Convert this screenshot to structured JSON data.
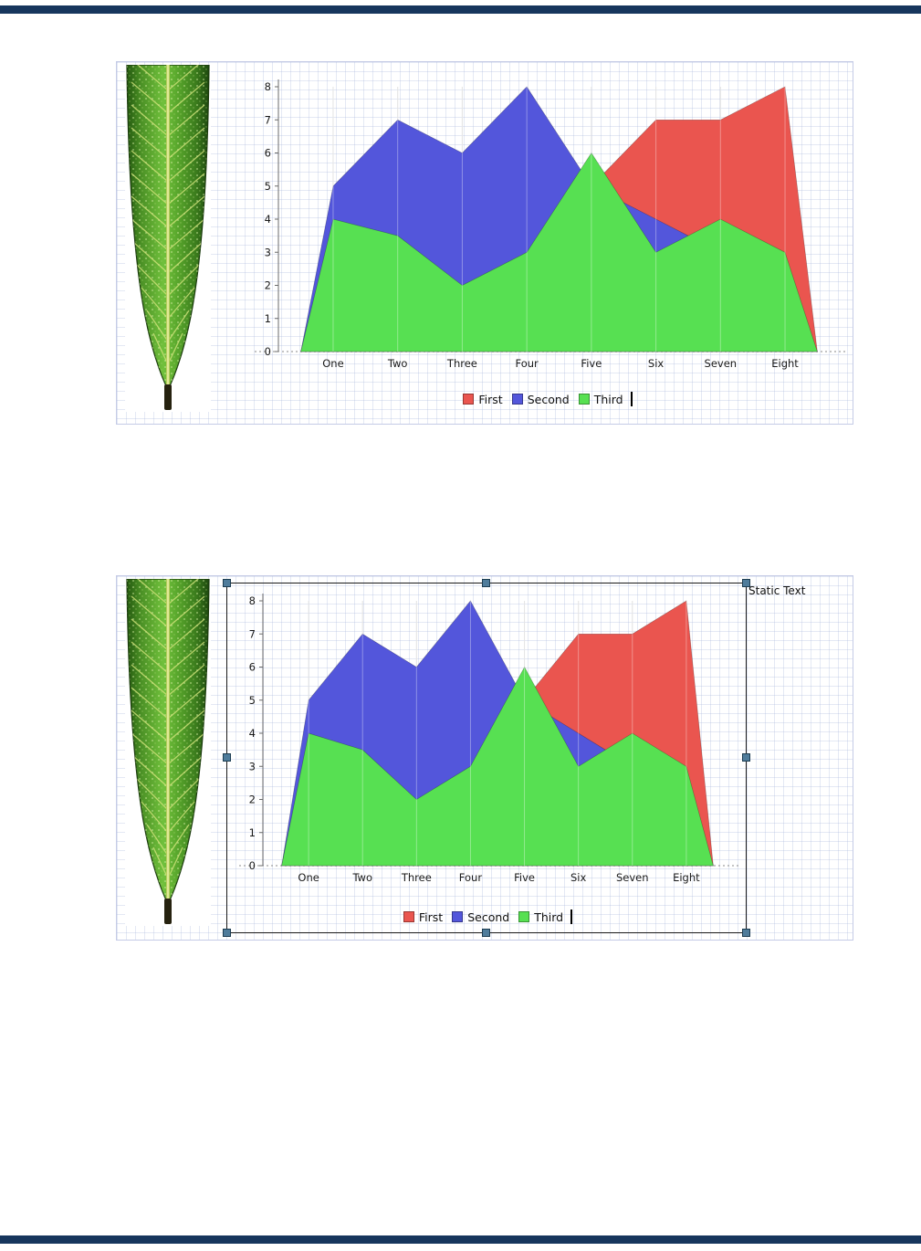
{
  "document": {
    "header_rule_color": "#17365D",
    "footer_rule_color": "#17365D"
  },
  "designer": {
    "static_text_label": "Static Text"
  },
  "chart_data": [
    {
      "type": "area",
      "title": "",
      "categories": [
        "One",
        "Two",
        "Three",
        "Four",
        "Five",
        "Six",
        "Seven",
        "Eight"
      ],
      "series": [
        {
          "name": "First",
          "color": "#EA554F",
          "values": [
            3,
            3,
            2,
            3,
            5,
            7,
            7,
            8
          ]
        },
        {
          "name": "Second",
          "color": "#5356DB",
          "values": [
            5,
            7,
            6,
            8,
            5,
            4,
            3,
            2
          ]
        },
        {
          "name": "Third",
          "color": "#57E052",
          "values": [
            4,
            3.5,
            2,
            3,
            6,
            3,
            4,
            3
          ]
        }
      ],
      "ylim": [
        0,
        8
      ],
      "yticks": [
        0,
        1,
        2,
        3,
        4,
        5,
        6,
        7,
        8
      ],
      "xlabel": "",
      "ylabel": "",
      "legend": [
        "First",
        "Second",
        "Third"
      ],
      "legend_position": "bottom",
      "grid": "vertical category gridlines",
      "text_cursor_after_legend": true
    },
    {
      "type": "area",
      "title": "",
      "categories": [
        "One",
        "Two",
        "Three",
        "Four",
        "Five",
        "Six",
        "Seven",
        "Eight"
      ],
      "series": [
        {
          "name": "First",
          "color": "#EA554F",
          "values": [
            3,
            3,
            2,
            3,
            5,
            7,
            7,
            8
          ]
        },
        {
          "name": "Second",
          "color": "#5356DB",
          "values": [
            5,
            7,
            6,
            8,
            5,
            4,
            3,
            2
          ]
        },
        {
          "name": "Third",
          "color": "#57E052",
          "values": [
            4,
            3.5,
            2,
            3,
            6,
            3,
            4,
            3
          ]
        }
      ],
      "ylim": [
        0,
        8
      ],
      "yticks": [
        0,
        1,
        2,
        3,
        4,
        5,
        6,
        7,
        8
      ],
      "xlabel": "",
      "ylabel": "",
      "legend": [
        "First",
        "Second",
        "Third"
      ],
      "legend_position": "bottom",
      "grid": "vertical category gridlines",
      "text_cursor_after_legend": true
    }
  ]
}
